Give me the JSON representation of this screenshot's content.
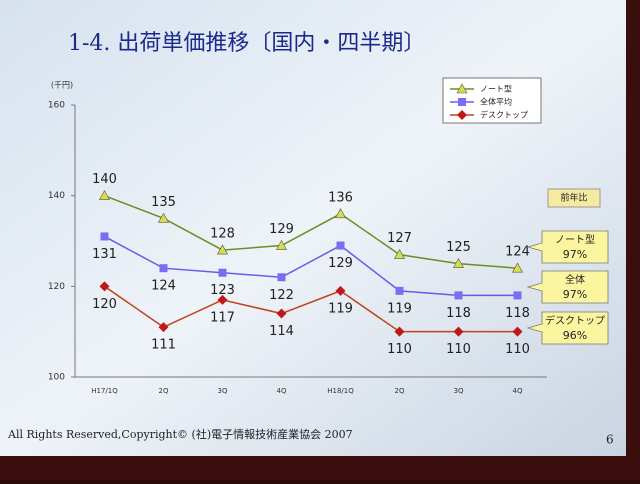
{
  "chart_data": {
    "type": "line",
    "title": "1-4. 出荷単価推移〔国内・四半期〕",
    "y_unit_label": "(千円)",
    "categories": [
      "H17/1Q",
      "2Q",
      "3Q",
      "4Q",
      "H18/1Q",
      "2Q",
      "3Q",
      "4Q"
    ],
    "series": [
      {
        "name": "ノート型",
        "color": "#6b8e23",
        "marker": "triangle",
        "marker_color": "#d4e04a",
        "values": [
          140,
          135,
          128,
          129,
          136,
          127,
          125,
          124
        ]
      },
      {
        "name": "全体平均",
        "color": "#6a5ae8",
        "marker": "square",
        "marker_color": "#7b6cf0",
        "values": [
          131,
          124,
          123,
          122,
          129,
          119,
          118,
          118
        ]
      },
      {
        "name": "デスクトップ",
        "color": "#c0441a",
        "marker": "diamond",
        "marker_color": "#c01818",
        "values": [
          120,
          111,
          117,
          114,
          119,
          110,
          110,
          110
        ]
      }
    ],
    "ylim": [
      100,
      160
    ],
    "yticks": [
      100,
      120,
      140,
      160
    ],
    "legend": "top-right",
    "annotations": {
      "header": "前年比",
      "callouts": [
        {
          "name": "ノート型",
          "text": "97%"
        },
        {
          "name": "全体",
          "text": "97%"
        },
        {
          "name": "デスクトップ",
          "text": "96%"
        }
      ]
    }
  },
  "footer": {
    "copyright": "All Rights Reserved,Copyright© (社)電子情報技術産業協会 2007",
    "page": "6"
  }
}
